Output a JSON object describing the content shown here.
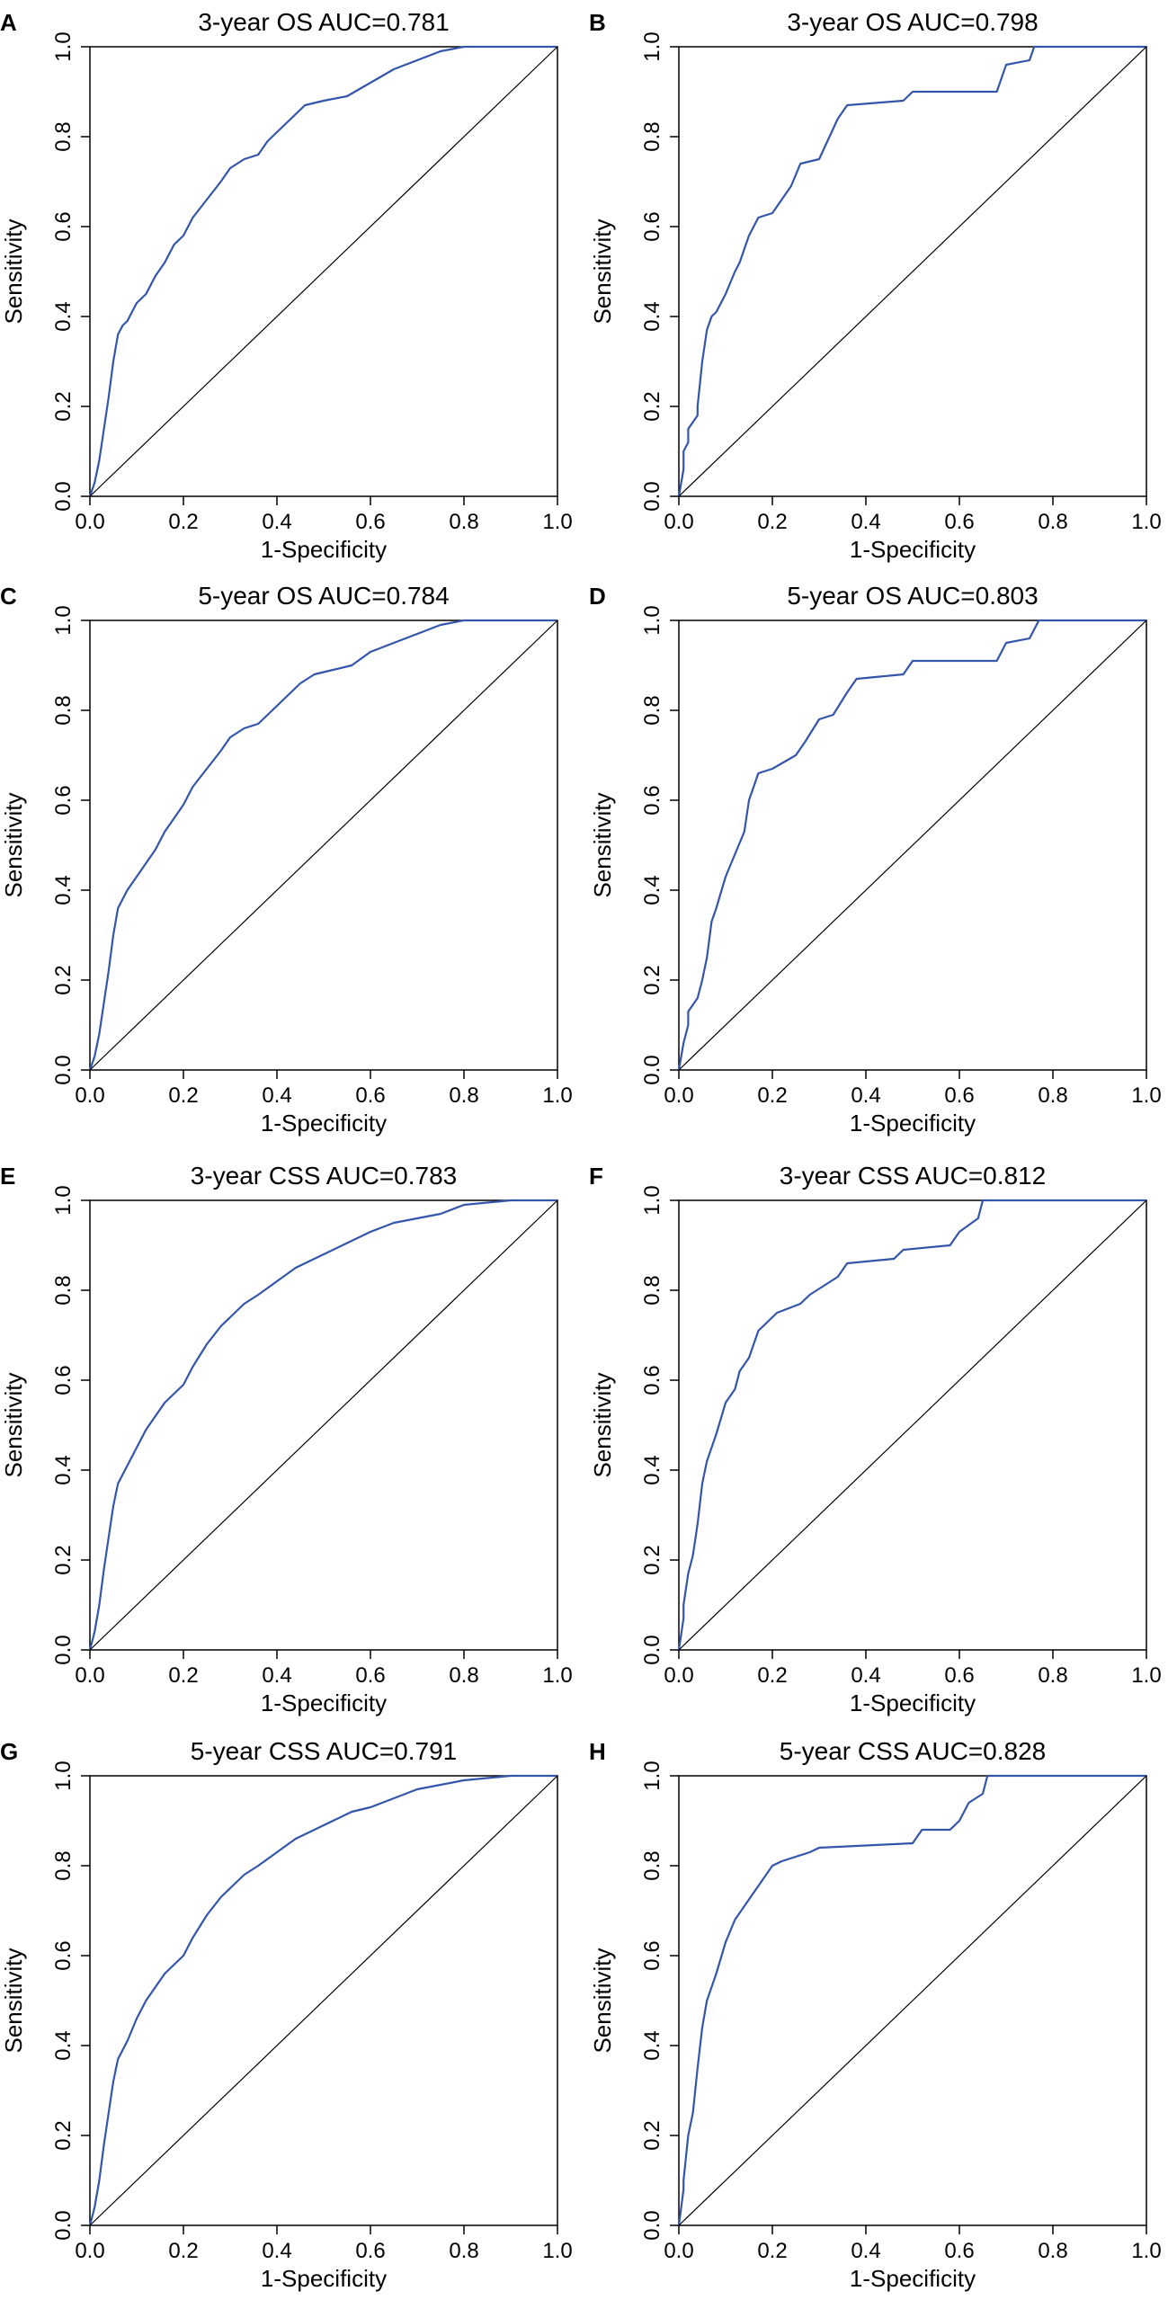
{
  "figure": {
    "style": {
      "curve_color": "#3355aa",
      "axis_color": "#000000",
      "background": "#ffffff"
    }
  },
  "chart_data": [
    {
      "panel": "A",
      "type": "line",
      "title": "3-year  OS  AUC=0.781",
      "xlabel": "1-Specificity",
      "ylabel": "Sensitivity",
      "xlim": [
        0,
        1
      ],
      "ylim": [
        0,
        1
      ],
      "xticks": [
        "0.0",
        "0.2",
        "0.4",
        "0.6",
        "0.8",
        "1.0"
      ],
      "yticks": [
        "0.0",
        "0.2",
        "0.4",
        "0.6",
        "0.8",
        "1.0"
      ],
      "series": [
        {
          "name": "ROC",
          "x": [
            0,
            0.01,
            0.02,
            0.03,
            0.04,
            0.05,
            0.06,
            0.07,
            0.08,
            0.1,
            0.12,
            0.14,
            0.16,
            0.18,
            0.2,
            0.22,
            0.25,
            0.28,
            0.3,
            0.33,
            0.36,
            0.38,
            0.4,
            0.43,
            0.46,
            0.5,
            0.55,
            0.6,
            0.65,
            0.7,
            0.75,
            0.8,
            0.9,
            1.0
          ],
          "y": [
            0,
            0.03,
            0.08,
            0.15,
            0.22,
            0.3,
            0.36,
            0.38,
            0.39,
            0.43,
            0.45,
            0.49,
            0.52,
            0.56,
            0.58,
            0.62,
            0.66,
            0.7,
            0.73,
            0.75,
            0.76,
            0.79,
            0.81,
            0.84,
            0.87,
            0.88,
            0.89,
            0.92,
            0.95,
            0.97,
            0.99,
            1.0,
            1.0,
            1.0
          ]
        },
        {
          "name": "reference",
          "x": [
            0,
            1
          ],
          "y": [
            0,
            1
          ]
        }
      ]
    },
    {
      "panel": "B",
      "type": "line",
      "title": "3-year  OS  AUC=0.798",
      "xlabel": "1-Specificity",
      "ylabel": "Sensitivity",
      "xlim": [
        0,
        1
      ],
      "ylim": [
        0,
        1
      ],
      "xticks": [
        "0.0",
        "0.2",
        "0.4",
        "0.6",
        "0.8",
        "1.0"
      ],
      "yticks": [
        "0.0",
        "0.2",
        "0.4",
        "0.6",
        "0.8",
        "1.0"
      ],
      "series": [
        {
          "name": "ROC",
          "x": [
            0,
            0.01,
            0.01,
            0.02,
            0.02,
            0.04,
            0.04,
            0.05,
            0.06,
            0.07,
            0.08,
            0.1,
            0.12,
            0.13,
            0.15,
            0.17,
            0.2,
            0.22,
            0.24,
            0.26,
            0.3,
            0.34,
            0.36,
            0.48,
            0.5,
            0.68,
            0.7,
            0.75,
            0.76,
            1.0
          ],
          "y": [
            0,
            0.06,
            0.1,
            0.12,
            0.15,
            0.18,
            0.2,
            0.3,
            0.37,
            0.4,
            0.41,
            0.45,
            0.5,
            0.52,
            0.58,
            0.62,
            0.63,
            0.66,
            0.69,
            0.74,
            0.75,
            0.84,
            0.87,
            0.88,
            0.9,
            0.9,
            0.96,
            0.97,
            1.0,
            1.0
          ]
        },
        {
          "name": "reference",
          "x": [
            0,
            1
          ],
          "y": [
            0,
            1
          ]
        }
      ]
    },
    {
      "panel": "C",
      "type": "line",
      "title": "5-year  OS  AUC=0.784",
      "xlabel": "1-Specificity",
      "ylabel": "Sensitivity",
      "xlim": [
        0,
        1
      ],
      "ylim": [
        0,
        1
      ],
      "xticks": [
        "0.0",
        "0.2",
        "0.4",
        "0.6",
        "0.8",
        "1.0"
      ],
      "yticks": [
        "0.0",
        "0.2",
        "0.4",
        "0.6",
        "0.8",
        "1.0"
      ],
      "series": [
        {
          "name": "ROC",
          "x": [
            0,
            0.01,
            0.02,
            0.03,
            0.04,
            0.05,
            0.06,
            0.07,
            0.08,
            0.1,
            0.12,
            0.14,
            0.16,
            0.18,
            0.2,
            0.22,
            0.25,
            0.28,
            0.3,
            0.33,
            0.36,
            0.39,
            0.42,
            0.45,
            0.48,
            0.52,
            0.56,
            0.6,
            0.65,
            0.7,
            0.75,
            0.8,
            0.9,
            1.0
          ],
          "y": [
            0,
            0.03,
            0.08,
            0.15,
            0.22,
            0.3,
            0.36,
            0.38,
            0.4,
            0.43,
            0.46,
            0.49,
            0.53,
            0.56,
            0.59,
            0.63,
            0.67,
            0.71,
            0.74,
            0.76,
            0.77,
            0.8,
            0.83,
            0.86,
            0.88,
            0.89,
            0.9,
            0.93,
            0.95,
            0.97,
            0.99,
            1.0,
            1.0,
            1.0
          ]
        },
        {
          "name": "reference",
          "x": [
            0,
            1
          ],
          "y": [
            0,
            1
          ]
        }
      ]
    },
    {
      "panel": "D",
      "type": "line",
      "title": "5-year  OS  AUC=0.803",
      "xlabel": "1-Specificity",
      "ylabel": "Sensitivity",
      "xlim": [
        0,
        1
      ],
      "ylim": [
        0,
        1
      ],
      "xticks": [
        "0.0",
        "0.2",
        "0.4",
        "0.6",
        "0.8",
        "1.0"
      ],
      "yticks": [
        "0.0",
        "0.2",
        "0.4",
        "0.6",
        "0.8",
        "1.0"
      ],
      "series": [
        {
          "name": "ROC",
          "x": [
            0,
            0.01,
            0.02,
            0.02,
            0.04,
            0.05,
            0.06,
            0.07,
            0.08,
            0.1,
            0.12,
            0.14,
            0.15,
            0.17,
            0.2,
            0.25,
            0.27,
            0.3,
            0.33,
            0.36,
            0.38,
            0.48,
            0.5,
            0.68,
            0.7,
            0.75,
            0.77,
            1.0
          ],
          "y": [
            0,
            0.06,
            0.1,
            0.13,
            0.16,
            0.2,
            0.25,
            0.33,
            0.36,
            0.43,
            0.48,
            0.53,
            0.6,
            0.66,
            0.67,
            0.7,
            0.73,
            0.78,
            0.79,
            0.84,
            0.87,
            0.88,
            0.91,
            0.91,
            0.95,
            0.96,
            1.0,
            1.0
          ]
        },
        {
          "name": "reference",
          "x": [
            0,
            1
          ],
          "y": [
            0,
            1
          ]
        }
      ]
    },
    {
      "panel": "E",
      "type": "line",
      "title": "3-year  CSS  AUC=0.783",
      "xlabel": "1-Specificity",
      "ylabel": "Sensitivity",
      "xlim": [
        0,
        1
      ],
      "ylim": [
        0,
        1
      ],
      "xticks": [
        "0.0",
        "0.2",
        "0.4",
        "0.6",
        "0.8",
        "1.0"
      ],
      "yticks": [
        "0.0",
        "0.2",
        "0.4",
        "0.6",
        "0.8",
        "1.0"
      ],
      "series": [
        {
          "name": "ROC",
          "x": [
            0,
            0.01,
            0.02,
            0.03,
            0.04,
            0.05,
            0.06,
            0.07,
            0.08,
            0.1,
            0.12,
            0.14,
            0.16,
            0.18,
            0.2,
            0.22,
            0.25,
            0.28,
            0.3,
            0.33,
            0.36,
            0.4,
            0.44,
            0.48,
            0.52,
            0.56,
            0.6,
            0.65,
            0.7,
            0.75,
            0.8,
            0.9,
            1.0
          ],
          "y": [
            0,
            0.04,
            0.1,
            0.18,
            0.25,
            0.32,
            0.37,
            0.39,
            0.41,
            0.45,
            0.49,
            0.52,
            0.55,
            0.57,
            0.59,
            0.63,
            0.68,
            0.72,
            0.74,
            0.77,
            0.79,
            0.82,
            0.85,
            0.87,
            0.89,
            0.91,
            0.93,
            0.95,
            0.96,
            0.97,
            0.99,
            1.0,
            1.0
          ]
        },
        {
          "name": "reference",
          "x": [
            0,
            1
          ],
          "y": [
            0,
            1
          ]
        }
      ]
    },
    {
      "panel": "F",
      "type": "line",
      "title": "3-year  CSS  AUC=0.812",
      "xlabel": "1-Specificity",
      "ylabel": "Sensitivity",
      "xlim": [
        0,
        1
      ],
      "ylim": [
        0,
        1
      ],
      "xticks": [
        "0.0",
        "0.2",
        "0.4",
        "0.6",
        "0.8",
        "1.0"
      ],
      "yticks": [
        "0.0",
        "0.2",
        "0.4",
        "0.6",
        "0.8",
        "1.0"
      ],
      "series": [
        {
          "name": "ROC",
          "x": [
            0,
            0.01,
            0.01,
            0.02,
            0.03,
            0.04,
            0.05,
            0.06,
            0.08,
            0.1,
            0.12,
            0.13,
            0.15,
            0.17,
            0.19,
            0.21,
            0.26,
            0.28,
            0.34,
            0.36,
            0.46,
            0.48,
            0.58,
            0.6,
            0.64,
            0.65,
            1.0
          ],
          "y": [
            0,
            0.07,
            0.1,
            0.17,
            0.21,
            0.28,
            0.37,
            0.42,
            0.48,
            0.55,
            0.58,
            0.62,
            0.65,
            0.71,
            0.73,
            0.75,
            0.77,
            0.79,
            0.83,
            0.86,
            0.87,
            0.89,
            0.9,
            0.93,
            0.96,
            1.0,
            1.0
          ]
        },
        {
          "name": "reference",
          "x": [
            0,
            1
          ],
          "y": [
            0,
            1
          ]
        }
      ]
    },
    {
      "panel": "G",
      "type": "line",
      "title": "5-year  CSS  AUC=0.791",
      "xlabel": "1-Specificity",
      "ylabel": "Sensitivity",
      "xlim": [
        0,
        1
      ],
      "ylim": [
        0,
        1
      ],
      "xticks": [
        "0.0",
        "0.2",
        "0.4",
        "0.6",
        "0.8",
        "1.0"
      ],
      "yticks": [
        "0.0",
        "0.2",
        "0.4",
        "0.6",
        "0.8",
        "1.0"
      ],
      "series": [
        {
          "name": "ROC",
          "x": [
            0,
            0.01,
            0.02,
            0.03,
            0.04,
            0.05,
            0.06,
            0.07,
            0.08,
            0.1,
            0.12,
            0.14,
            0.16,
            0.18,
            0.2,
            0.22,
            0.25,
            0.28,
            0.3,
            0.33,
            0.36,
            0.4,
            0.44,
            0.48,
            0.52,
            0.56,
            0.6,
            0.65,
            0.7,
            0.75,
            0.8,
            0.9,
            1.0
          ],
          "y": [
            0,
            0.04,
            0.1,
            0.18,
            0.25,
            0.32,
            0.37,
            0.39,
            0.41,
            0.46,
            0.5,
            0.53,
            0.56,
            0.58,
            0.6,
            0.64,
            0.69,
            0.73,
            0.75,
            0.78,
            0.8,
            0.83,
            0.86,
            0.88,
            0.9,
            0.92,
            0.93,
            0.95,
            0.97,
            0.98,
            0.99,
            1.0,
            1.0
          ]
        },
        {
          "name": "reference",
          "x": [
            0,
            1
          ],
          "y": [
            0,
            1
          ]
        }
      ]
    },
    {
      "panel": "H",
      "type": "line",
      "title": "5-year  CSS  AUC=0.828",
      "xlabel": "1-Specificity",
      "ylabel": "Sensitivity",
      "xlim": [
        0,
        1
      ],
      "ylim": [
        0,
        1
      ],
      "xticks": [
        "0.0",
        "0.2",
        "0.4",
        "0.6",
        "0.8",
        "1.0"
      ],
      "yticks": [
        "0.0",
        "0.2",
        "0.4",
        "0.6",
        "0.8",
        "1.0"
      ],
      "series": [
        {
          "name": "ROC",
          "x": [
            0,
            0.01,
            0.01,
            0.02,
            0.03,
            0.04,
            0.05,
            0.06,
            0.08,
            0.1,
            0.12,
            0.14,
            0.16,
            0.18,
            0.2,
            0.22,
            0.28,
            0.3,
            0.5,
            0.52,
            0.58,
            0.6,
            0.62,
            0.65,
            0.66,
            1.0
          ],
          "y": [
            0,
            0.08,
            0.1,
            0.2,
            0.25,
            0.35,
            0.44,
            0.5,
            0.56,
            0.63,
            0.68,
            0.71,
            0.74,
            0.77,
            0.8,
            0.81,
            0.83,
            0.84,
            0.85,
            0.88,
            0.88,
            0.9,
            0.94,
            0.96,
            1.0,
            1.0
          ]
        },
        {
          "name": "reference",
          "x": [
            0,
            1
          ],
          "y": [
            0,
            1
          ]
        }
      ]
    }
  ]
}
